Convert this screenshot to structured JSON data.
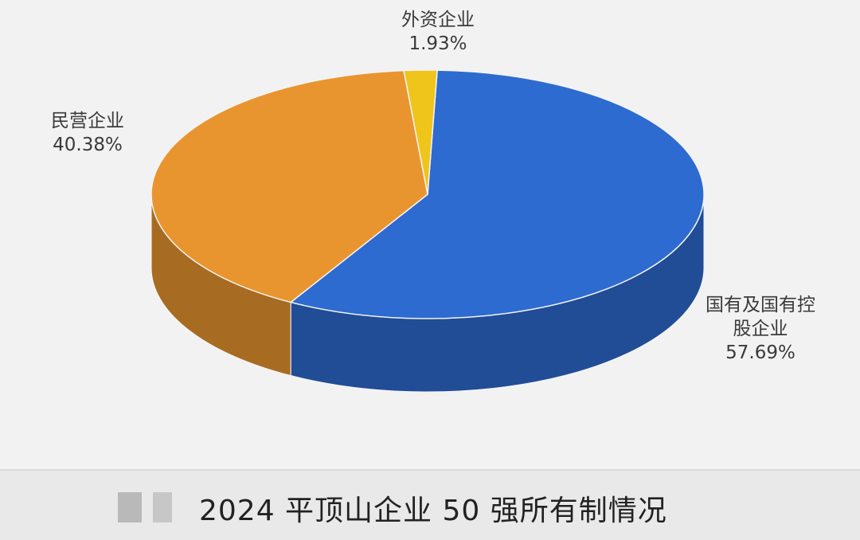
{
  "chart_data": {
    "type": "pie3d",
    "title": "2024 平顶山企业 50 强所有制情况",
    "categories": [
      "国有及国有控股企业",
      "民营企业",
      "外资企业"
    ],
    "values": [
      57.69,
      40.38,
      1.93
    ],
    "value_labels": [
      "57.69%",
      "40.38%",
      "1.93%"
    ],
    "colors": [
      "#2d6bd0",
      "#e9952f",
      "#efc51c"
    ]
  }
}
